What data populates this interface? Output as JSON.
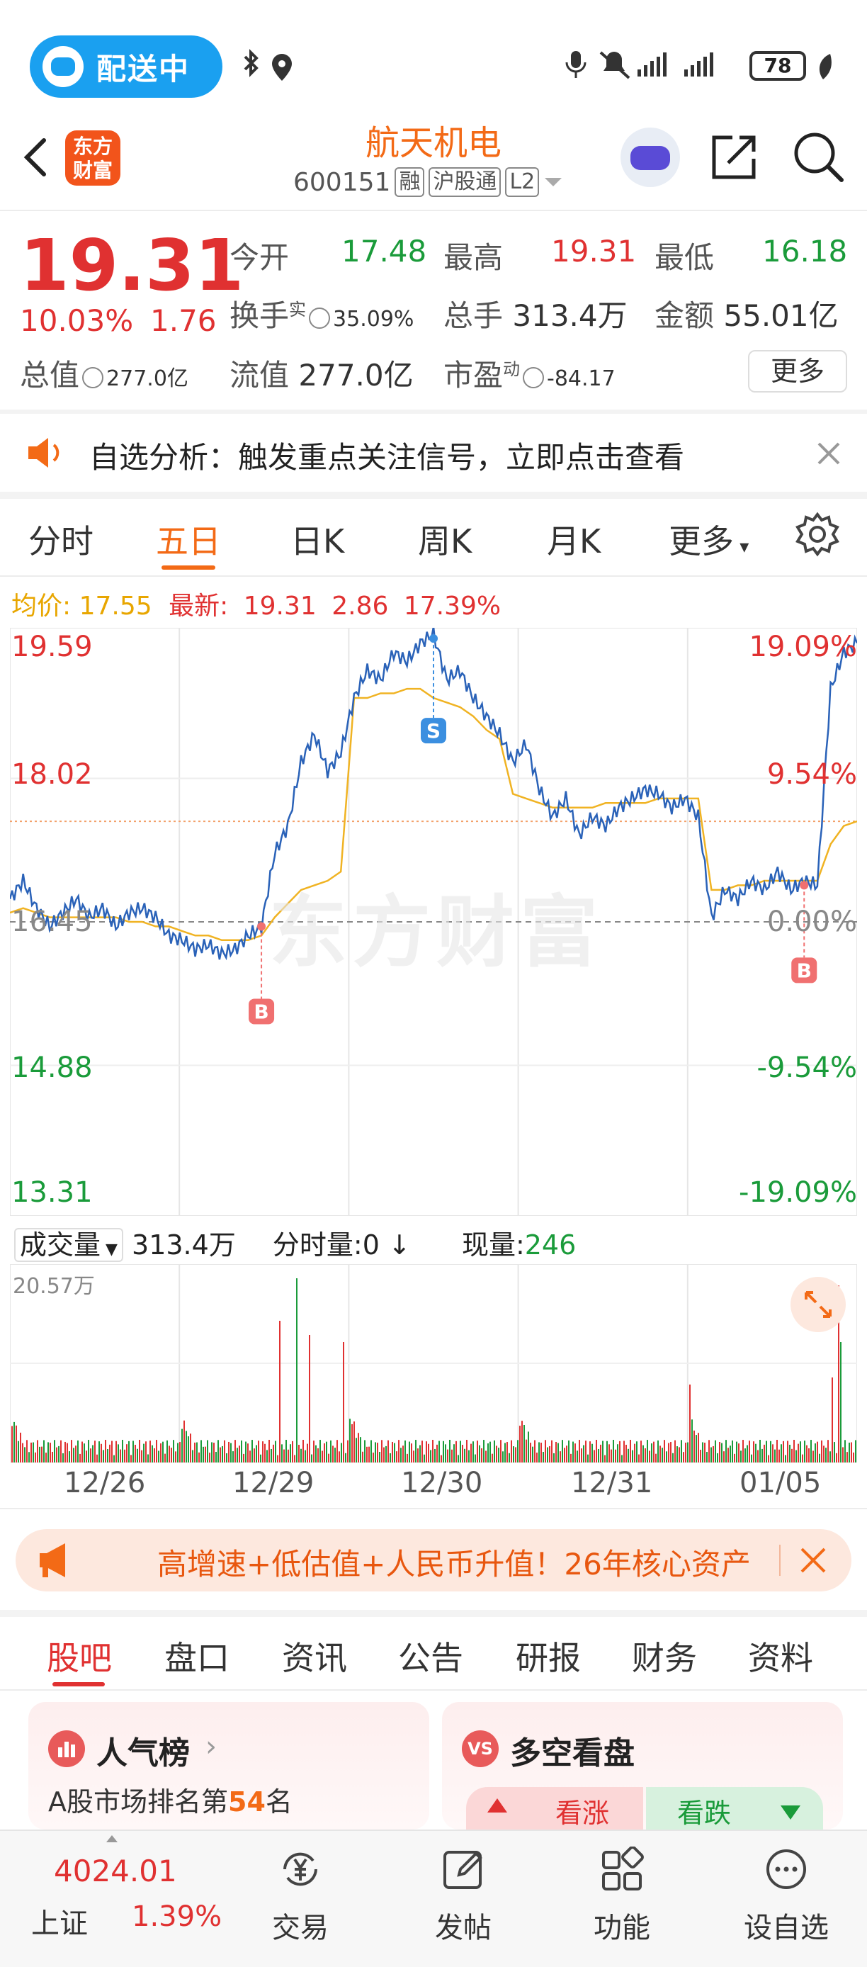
{
  "status_bar": {
    "delivery_label": "配送中",
    "battery": "78"
  },
  "header": {
    "logo_text": "东方财富",
    "stock_name": "航天机电",
    "stock_code": "600151",
    "tags": [
      "融",
      "沪股通",
      "L2"
    ]
  },
  "quote": {
    "price": "19.31",
    "change_pct": "10.03%",
    "change_amt": "1.76",
    "open_label": "今开",
    "open": "17.48",
    "high_label": "最高",
    "high": "19.31",
    "low_label": "最低",
    "low": "16.18",
    "turnover_label": "换手",
    "turnover_sup": "实",
    "turnover": "35.09%",
    "volume_label": "总手",
    "volume": "313.4万",
    "amount_label": "金额",
    "amount": "55.01亿",
    "total_mv_label": "总值",
    "total_mv": "277.0亿",
    "float_mv_label": "流值",
    "float_mv": "277.0亿",
    "pe_label": "市盈",
    "pe_sup": "动",
    "pe": "-84.17",
    "more_label": "更多"
  },
  "alert": {
    "text": "自选分析：触发重点关注信号，立即点击查看"
  },
  "chart_tabs": [
    "分时",
    "五日",
    "日K",
    "周K",
    "月K",
    "更多"
  ],
  "avg_row": {
    "avg_label": "均价:",
    "avg_value": "17.55",
    "latest_label": "最新:",
    "latest_value": "19.31",
    "latest_change": "2.86",
    "latest_pct": "17.39%"
  },
  "watermark": "东方财富",
  "chart_data": {
    "type": "line",
    "y_left_ticks": [
      "19.59",
      "18.02",
      "16.45",
      "14.88",
      "13.31"
    ],
    "y_right_ticks": [
      "19.09%",
      "9.54%",
      "0.00%",
      "-9.54%",
      "-19.09%"
    ],
    "ylim": [
      13.31,
      19.59
    ],
    "prev_close": 16.45,
    "x_labels": [
      "12/26",
      "12/29",
      "12/30",
      "12/31",
      "01/05"
    ],
    "price_series": [
      16.7,
      16.9,
      16.6,
      16.4,
      16.55,
      16.7,
      16.5,
      16.6,
      16.4,
      16.55,
      16.6,
      16.5,
      16.3,
      16.25,
      16.15,
      16.2,
      16.1,
      16.15,
      16.3,
      16.4,
      17.2,
      17.5,
      18.2,
      18.5,
      18.1,
      18.3,
      18.9,
      19.2,
      19.1,
      19.4,
      19.3,
      19.5,
      19.6,
      19.1,
      19.2,
      18.9,
      18.7,
      18.5,
      18.2,
      18.4,
      17.9,
      17.6,
      17.8,
      17.4,
      17.6,
      17.5,
      17.7,
      17.8,
      17.9,
      17.85,
      17.7,
      17.8,
      17.6,
      16.5,
      16.8,
      16.7,
      16.9,
      16.8,
      17.0,
      16.8,
      16.9,
      16.85,
      19.0,
      19.4,
      19.5
    ],
    "avg_series": [
      16.55,
      16.6,
      16.55,
      16.5,
      16.5,
      16.5,
      16.5,
      16.5,
      16.5,
      16.45,
      16.45,
      16.4,
      16.4,
      16.35,
      16.3,
      16.3,
      16.25,
      16.25,
      16.25,
      16.3,
      16.5,
      16.65,
      16.8,
      16.85,
      16.9,
      17.0,
      18.9,
      18.9,
      18.95,
      18.95,
      19.0,
      19.0,
      18.9,
      18.85,
      18.8,
      18.7,
      18.55,
      18.45,
      17.85,
      17.8,
      17.75,
      17.7,
      17.7,
      17.7,
      17.7,
      17.75,
      17.75,
      17.75,
      17.75,
      17.8,
      17.8,
      17.8,
      17.8,
      16.8,
      16.8,
      16.85,
      16.85,
      16.9,
      16.9,
      16.9,
      16.9,
      16.9,
      17.3,
      17.5,
      17.55
    ],
    "markers": [
      {
        "label": "B",
        "index": 19,
        "price": 16.4
      },
      {
        "label": "S",
        "index": 32,
        "price": 19.55
      },
      {
        "label": "B",
        "index": 60,
        "price": 16.85
      }
    ]
  },
  "volume": {
    "selector_label": "成交量",
    "total": "313.4万",
    "period_label": "分时量:",
    "period_value": "0",
    "current_label": "现量:",
    "current_value": "246",
    "max_label": "20.57万"
  },
  "ad": {
    "text": "高增速+低估值+人民币升值！26年核心资产"
  },
  "section_tabs": [
    "股吧",
    "盘口",
    "资讯",
    "公告",
    "研报",
    "财务",
    "资料"
  ],
  "cards": {
    "popularity_title": "人气榜",
    "popularity_sub_prefix": "A股市场排名第",
    "popularity_rank": "54",
    "popularity_sub_suffix": "名",
    "bull_bear_title": "多空看盘",
    "bull_label": "看涨",
    "bear_label": "看跌"
  },
  "bottom_nav": {
    "index_value": "4024.01",
    "index_name": "上证",
    "index_pct": "1.39%",
    "items": [
      "交易",
      "发帖",
      "功能",
      "设自选"
    ]
  },
  "colors": {
    "accent": "#f36a16",
    "up": "#e03131",
    "down": "#1a9b3a",
    "price_line": "#2a62b8",
    "avg_line": "#f0b323"
  }
}
